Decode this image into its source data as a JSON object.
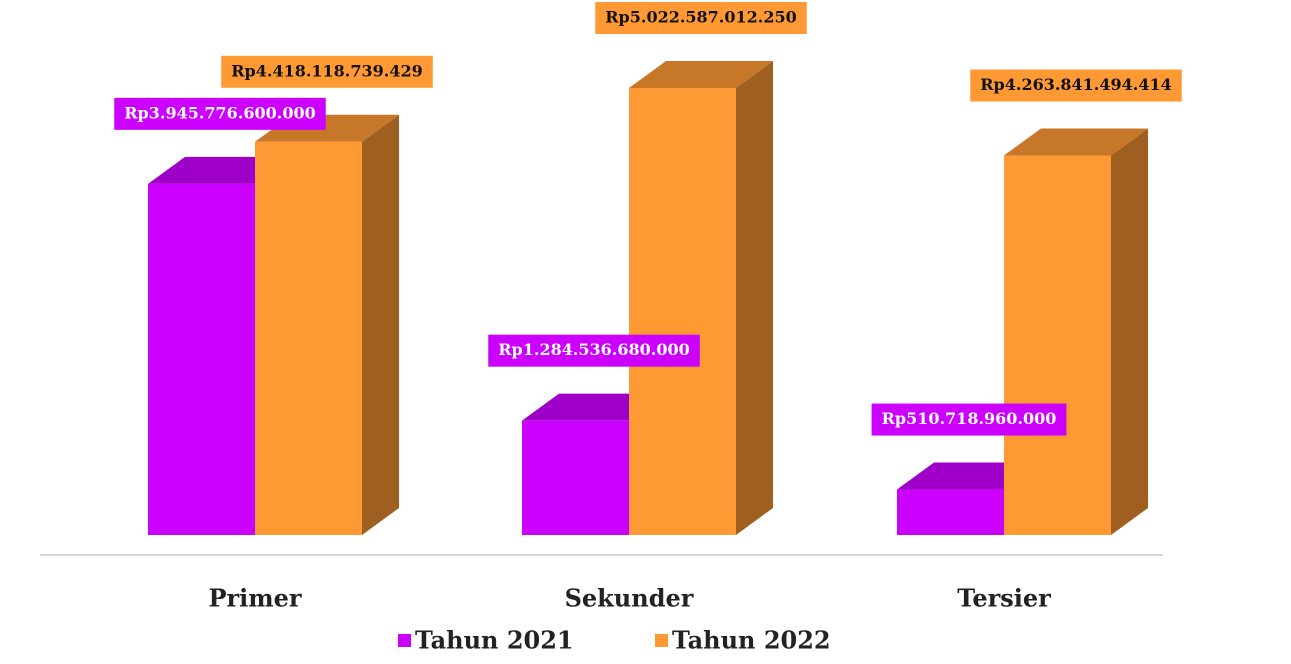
{
  "chart_data": {
    "type": "bar3d",
    "categories": [
      "Primer",
      "Sekunder",
      "Tersier"
    ],
    "series": [
      {
        "name": "Tahun 2021",
        "color": "#cc00ff",
        "values": [
          3945776600000,
          1284536680000,
          510718960000
        ],
        "value_labels": [
          "Rp3.945.776.600.000",
          "Rp1.284.536.680.000",
          "Rp510.718.960.000"
        ]
      },
      {
        "name": "Tahun 2022",
        "color": "#ff9933",
        "values": [
          4418118739429,
          5022587012250,
          4263841494414
        ],
        "value_labels": [
          "Rp4.418.118.739.429",
          "Rp5.022.587.012.250",
          "Rp4.263.841.494.414"
        ]
      }
    ]
  }
}
